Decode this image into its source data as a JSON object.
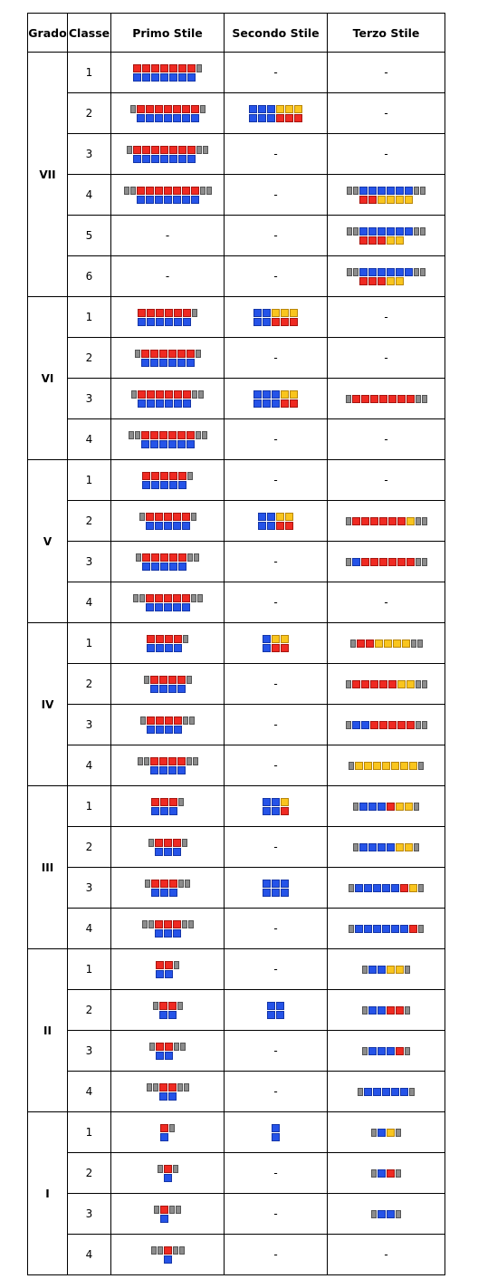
{
  "headers": {
    "grado": "Grado",
    "classe": "Classe",
    "primo": "Primo Stile",
    "secondo": "Secondo Stile",
    "terzo": "Terzo Stile"
  },
  "palette": {
    "B": "#2553e8",
    "R": "#ef2a22",
    "Y": "#f9c51e",
    "G": "#8c8c8c"
  },
  "legend_note": "Cell codes: B=blue, R=red, Y=yellow, G=grey side block, .=empty",
  "rows": [
    {
      "grado": "VII",
      "classe": "1",
      "primo": [
        "RRRRRRRG",
        "BBBBBBB."
      ],
      "secondo": "-",
      "terzo": "-"
    },
    {
      "grado": "VII",
      "classe": "2",
      "primo": [
        "GRRRRRRRG",
        ".BBBBBBB."
      ],
      "secondo": [
        "BBBYYY",
        "BBBRRR"
      ],
      "terzo": "-"
    },
    {
      "grado": "VII",
      "classe": "3",
      "primo": [
        "GRRRRRRRGG",
        ".BBBBBBB.."
      ],
      "secondo": "-",
      "terzo": "-"
    },
    {
      "grado": "VII",
      "classe": "4",
      "primo": [
        "GGRRRRRRRGG",
        "..BBBBBBB.."
      ],
      "secondo": "-",
      "terzo": [
        "GGBBBBBBGG",
        "..RRYYYY.."
      ]
    },
    {
      "grado": "VII",
      "classe": "5",
      "primo": "-",
      "secondo": "-",
      "terzo": [
        "GGBBBBBBGG",
        "..RRRYY..."
      ]
    },
    {
      "grado": "VII",
      "classe": "6",
      "primo": "-",
      "secondo": "-",
      "terzo": [
        "GGBBBBBBGG",
        "..RRRYY..."
      ]
    },
    {
      "grado": "VI",
      "classe": "1",
      "primo": [
        "RRRRRRG",
        "BBBBBB."
      ],
      "secondo": [
        "BBYYY",
        "BBRRR"
      ],
      "terzo": "-"
    },
    {
      "grado": "VI",
      "classe": "2",
      "primo": [
        "GRRRRRRG",
        ".BBBBBB."
      ],
      "secondo": "-",
      "terzo": "-"
    },
    {
      "grado": "VI",
      "classe": "3",
      "primo": [
        "GRRRRRRGG",
        ".BBBBBB.."
      ],
      "secondo": [
        "BBBYY",
        "BBBRR"
      ],
      "terzo": [
        "GRRRRRRRGG"
      ]
    },
    {
      "grado": "VI",
      "classe": "4",
      "primo": [
        "GGRRRRRRGG",
        "..BBBBBB.."
      ],
      "secondo": "-",
      "terzo": "-"
    },
    {
      "grado": "V",
      "classe": "1",
      "primo": [
        "RRRRRG",
        "BBBBB."
      ],
      "secondo": "-",
      "terzo": "-"
    },
    {
      "grado": "V",
      "classe": "2",
      "primo": [
        "GRRRRRG",
        ".BBBBB."
      ],
      "secondo": [
        "BBYY",
        "BBRR"
      ],
      "terzo": [
        "GRRRRRRYGG"
      ]
    },
    {
      "grado": "V",
      "classe": "3",
      "primo": [
        "GRRRRRGG",
        ".BBBBB.."
      ],
      "secondo": "-",
      "terzo": [
        "GBRRRRRRGG"
      ]
    },
    {
      "grado": "V",
      "classe": "4",
      "primo": [
        "GGRRRRRGG",
        "..BBBBB.."
      ],
      "secondo": "-",
      "terzo": "-"
    },
    {
      "grado": "IV",
      "classe": "1",
      "primo": [
        "RRRRG",
        "BBBB."
      ],
      "secondo": [
        "BYY",
        "BRR"
      ],
      "terzo": [
        "GRRYYYYGG"
      ]
    },
    {
      "grado": "IV",
      "classe": "2",
      "primo": [
        "GRRRRG",
        ".BBBB."
      ],
      "secondo": "-",
      "terzo": [
        "GRRRRRYYGG"
      ]
    },
    {
      "grado": "IV",
      "classe": "3",
      "primo": [
        "GRRRRGG",
        ".BBBB.."
      ],
      "secondo": "-",
      "terzo": [
        "GBBRRRRRGG"
      ]
    },
    {
      "grado": "IV",
      "classe": "4",
      "primo": [
        "GGRRRRGG",
        "..BBBB.."
      ],
      "secondo": "-",
      "terzo": [
        "GYYYYYYYG"
      ]
    },
    {
      "grado": "III",
      "classe": "1",
      "primo": [
        "RRRG",
        "BBB."
      ],
      "secondo": [
        "BBY",
        "BBR"
      ],
      "terzo": [
        "GBBBRYYG"
      ]
    },
    {
      "grado": "III",
      "classe": "2",
      "primo": [
        "GRRRG",
        ".BBB."
      ],
      "secondo": "-",
      "terzo": [
        "GBBBBYYG"
      ]
    },
    {
      "grado": "III",
      "classe": "3",
      "primo": [
        "GRRRGG",
        ".BBB.."
      ],
      "secondo": [
        "BBB",
        "BBB"
      ],
      "terzo": [
        "GBBBBBRYG"
      ]
    },
    {
      "grado": "III",
      "classe": "4",
      "primo": [
        "GGRRRGG",
        "..BBB.."
      ],
      "secondo": "-",
      "terzo": [
        "GBBBBBBRG"
      ]
    },
    {
      "grado": "II",
      "classe": "1",
      "primo": [
        "RRG",
        "BB."
      ],
      "secondo": "-",
      "terzo": [
        "GBBYYG"
      ]
    },
    {
      "grado": "II",
      "classe": "2",
      "primo": [
        "GRRG",
        ".BB."
      ],
      "secondo": [
        "BB",
        "BB"
      ],
      "terzo": [
        "GBBRRG"
      ]
    },
    {
      "grado": "II",
      "classe": "3",
      "primo": [
        "GRRGG",
        ".BB.."
      ],
      "secondo": "-",
      "terzo": [
        "GBBBRG"
      ]
    },
    {
      "grado": "II",
      "classe": "4",
      "primo": [
        "GGRRGG",
        "..BB.."
      ],
      "secondo": "-",
      "terzo": [
        "GBBBBBG"
      ]
    },
    {
      "grado": "I",
      "classe": "1",
      "primo": [
        "RG",
        "B."
      ],
      "secondo": [
        "B",
        "B"
      ],
      "terzo": [
        "GBYG"
      ]
    },
    {
      "grado": "I",
      "classe": "2",
      "primo": [
        "GRG",
        ".B."
      ],
      "secondo": "-",
      "terzo": [
        "GBRG"
      ]
    },
    {
      "grado": "I",
      "classe": "3",
      "primo": [
        "GRGG",
        ".B.."
      ],
      "secondo": "-",
      "terzo": [
        "GBBG"
      ]
    },
    {
      "grado": "I",
      "classe": "4",
      "primo": [
        "GGRGG",
        "..B.."
      ],
      "secondo": "-",
      "terzo": "-"
    }
  ]
}
